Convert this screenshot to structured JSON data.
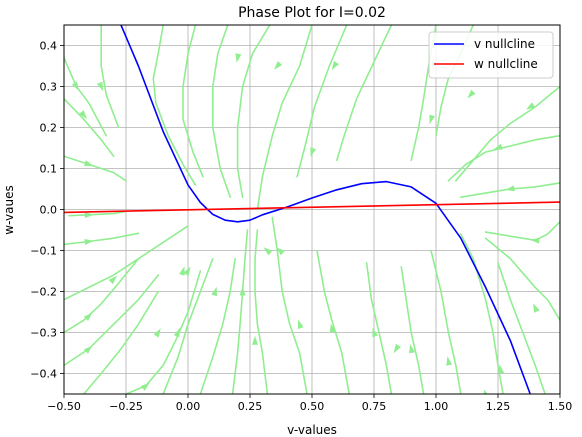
{
  "chart_data": {
    "type": "line",
    "title": "Phase Plot for I=0.02",
    "xlabel": "v-values",
    "ylabel": "w-vaues",
    "xlim": [
      -0.5,
      1.5
    ],
    "ylim": [
      -0.45,
      0.45
    ],
    "xticks": [
      -0.5,
      -0.25,
      0.0,
      0.25,
      0.5,
      0.75,
      1.0,
      1.25,
      1.5
    ],
    "xtick_labels": [
      "−0.50",
      "−0.25",
      "0.00",
      "0.25",
      "0.50",
      "0.75",
      "1.00",
      "1.25",
      "1.50"
    ],
    "yticks": [
      -0.4,
      -0.3,
      -0.2,
      -0.1,
      0.0,
      0.1,
      0.2,
      0.3,
      0.4
    ],
    "ytick_labels": [
      "−0.4",
      "−0.3",
      "−0.2",
      "−0.1",
      "0.0",
      "0.1",
      "0.2",
      "0.3",
      "0.4"
    ],
    "grid": true,
    "legend_position": "top-right",
    "series": [
      {
        "name": "v nullcline",
        "color": "#0000ff",
        "x": [
          -0.27,
          -0.2,
          -0.1,
          0.0,
          0.05,
          0.1,
          0.15,
          0.2,
          0.25,
          0.3,
          0.4,
          0.5,
          0.6,
          0.7,
          0.8,
          0.9,
          1.0,
          1.1,
          1.2,
          1.3,
          1.38
        ],
        "y": [
          0.45,
          0.35,
          0.19,
          0.06,
          0.017,
          -0.012,
          -0.026,
          -0.03,
          -0.026,
          -0.013,
          0.006,
          0.028,
          0.048,
          0.063,
          0.068,
          0.055,
          0.015,
          -0.07,
          -0.19,
          -0.32,
          -0.45
        ]
      },
      {
        "name": "w nullcline",
        "color": "#ff0000",
        "x": [
          -0.5,
          1.5
        ],
        "y": [
          -0.007,
          0.018
        ]
      }
    ],
    "streamlines": {
      "color": "#90ee90",
      "lines": [
        [
          [
            -0.5,
            0.27
          ],
          [
            -0.42,
            0.22
          ],
          [
            -0.35,
            0.17
          ],
          [
            -0.3,
            0.13
          ]
        ],
        [
          [
            -0.5,
            0.13
          ],
          [
            -0.4,
            0.11
          ],
          [
            -0.3,
            0.09
          ],
          [
            -0.25,
            0.07
          ]
        ],
        [
          [
            -0.48,
            -0.015
          ],
          [
            -0.4,
            -0.013
          ],
          [
            -0.3,
            -0.01
          ],
          [
            -0.25,
            -0.005
          ]
        ],
        [
          [
            -0.5,
            -0.085
          ],
          [
            -0.4,
            -0.078
          ],
          [
            -0.3,
            -0.07
          ],
          [
            -0.2,
            -0.058
          ]
        ],
        [
          [
            -0.5,
            -0.22
          ],
          [
            -0.4,
            -0.19
          ],
          [
            -0.3,
            -0.16
          ],
          [
            -0.2,
            -0.12
          ],
          [
            -0.1,
            -0.08
          ],
          [
            0.0,
            -0.04
          ]
        ],
        [
          [
            -0.5,
            -0.3
          ],
          [
            -0.42,
            -0.27
          ],
          [
            -0.35,
            -0.23
          ],
          [
            -0.28,
            -0.18
          ],
          [
            -0.2,
            -0.12
          ]
        ],
        [
          [
            -0.5,
            -0.38
          ],
          [
            -0.4,
            -0.34
          ],
          [
            -0.3,
            -0.28
          ],
          [
            -0.2,
            -0.22
          ],
          [
            -0.12,
            -0.16
          ]
        ],
        [
          [
            -0.42,
            -0.45
          ],
          [
            -0.35,
            -0.4
          ],
          [
            -0.27,
            -0.34
          ],
          [
            -0.2,
            -0.28
          ],
          [
            -0.12,
            -0.2
          ]
        ],
        [
          [
            -0.25,
            -0.45
          ],
          [
            -0.17,
            -0.43
          ],
          [
            -0.1,
            -0.38
          ],
          [
            -0.05,
            -0.32
          ],
          [
            0.0,
            -0.25
          ],
          [
            0.05,
            -0.15
          ]
        ],
        [
          [
            -0.1,
            -0.45
          ],
          [
            -0.04,
            -0.36
          ],
          [
            0.0,
            -0.28
          ],
          [
            0.05,
            -0.2
          ],
          [
            0.1,
            -0.12
          ]
        ],
        [
          [
            -0.5,
            0.37
          ],
          [
            -0.45,
            0.3
          ],
          [
            -0.4,
            0.26
          ],
          [
            -0.33,
            0.18
          ]
        ],
        [
          [
            -0.35,
            0.45
          ],
          [
            -0.35,
            0.35
          ],
          [
            -0.33,
            0.28
          ],
          [
            -0.28,
            0.2
          ]
        ],
        [
          [
            -0.1,
            0.45
          ],
          [
            -0.12,
            0.38
          ],
          [
            -0.14,
            0.32
          ],
          [
            -0.13,
            0.26
          ],
          [
            -0.08,
            0.18
          ],
          [
            -0.02,
            0.11
          ],
          [
            0.03,
            0.06
          ]
        ],
        [
          [
            0.03,
            0.45
          ],
          [
            0.0,
            0.38
          ],
          [
            -0.02,
            0.3
          ],
          [
            -0.02,
            0.22
          ],
          [
            0.02,
            0.14
          ],
          [
            0.06,
            0.08
          ]
        ],
        [
          [
            0.16,
            0.45
          ],
          [
            0.12,
            0.38
          ],
          [
            0.1,
            0.3
          ],
          [
            0.1,
            0.2
          ],
          [
            0.13,
            0.1
          ],
          [
            0.17,
            0.03
          ]
        ],
        [
          [
            0.33,
            0.45
          ],
          [
            0.26,
            0.38
          ],
          [
            0.22,
            0.3
          ],
          [
            0.2,
            0.2
          ],
          [
            0.2,
            0.1
          ],
          [
            0.22,
            0.03
          ]
        ],
        [
          [
            0.5,
            0.45
          ],
          [
            0.45,
            0.35
          ],
          [
            0.38,
            0.26
          ],
          [
            0.34,
            0.18
          ],
          [
            0.3,
            0.08
          ],
          [
            0.28,
            0.0
          ]
        ],
        [
          [
            0.64,
            0.45
          ],
          [
            0.57,
            0.35
          ],
          [
            0.51,
            0.25
          ],
          [
            0.47,
            0.15
          ],
          [
            0.44,
            0.08
          ]
        ],
        [
          [
            0.82,
            0.45
          ],
          [
            0.75,
            0.36
          ],
          [
            0.68,
            0.27
          ],
          [
            0.63,
            0.18
          ],
          [
            0.6,
            0.12
          ]
        ],
        [
          [
            1.0,
            0.45
          ],
          [
            0.97,
            0.35
          ],
          [
            0.95,
            0.27
          ],
          [
            0.93,
            0.2
          ],
          [
            0.9,
            0.12
          ]
        ],
        [
          [
            1.15,
            0.45
          ],
          [
            1.1,
            0.38
          ],
          [
            1.05,
            0.32
          ],
          [
            1.02,
            0.25
          ],
          [
            1.0,
            0.18
          ]
        ],
        [
          [
            1.5,
            0.3
          ],
          [
            1.4,
            0.25
          ],
          [
            1.3,
            0.21
          ],
          [
            1.22,
            0.17
          ],
          [
            1.15,
            0.12
          ],
          [
            1.08,
            0.07
          ]
        ],
        [
          [
            1.5,
            0.18
          ],
          [
            1.4,
            0.17
          ],
          [
            1.3,
            0.155
          ],
          [
            1.2,
            0.14
          ],
          [
            1.12,
            0.11
          ],
          [
            1.05,
            0.07
          ]
        ],
        [
          [
            1.5,
            0.065
          ],
          [
            1.4,
            0.055
          ],
          [
            1.3,
            0.05
          ],
          [
            1.2,
            0.04
          ],
          [
            1.1,
            0.03
          ]
        ],
        [
          [
            1.5,
            -0.03
          ],
          [
            1.45,
            -0.06
          ],
          [
            1.4,
            -0.075
          ],
          [
            1.3,
            -0.065
          ],
          [
            1.2,
            -0.055
          ]
        ],
        [
          [
            1.5,
            -0.27
          ],
          [
            1.45,
            -0.22
          ],
          [
            1.4,
            -0.19
          ],
          [
            1.3,
            -0.12
          ],
          [
            1.2,
            -0.07
          ]
        ],
        [
          [
            1.44,
            -0.45
          ],
          [
            1.4,
            -0.38
          ],
          [
            1.35,
            -0.3
          ],
          [
            1.3,
            -0.22
          ],
          [
            1.25,
            -0.13
          ]
        ],
        [
          [
            1.27,
            -0.45
          ],
          [
            1.25,
            -0.38
          ],
          [
            1.23,
            -0.3
          ],
          [
            1.2,
            -0.22
          ],
          [
            1.15,
            -0.12
          ],
          [
            1.1,
            -0.06
          ]
        ],
        [
          [
            1.1,
            -0.45
          ],
          [
            1.08,
            -0.38
          ],
          [
            1.05,
            -0.3
          ],
          [
            1.02,
            -0.2
          ],
          [
            0.98,
            -0.1
          ]
        ],
        [
          [
            0.95,
            -0.45
          ],
          [
            0.93,
            -0.38
          ],
          [
            0.9,
            -0.3
          ],
          [
            0.88,
            -0.22
          ],
          [
            0.86,
            -0.14
          ]
        ],
        [
          [
            0.82,
            -0.45
          ],
          [
            0.8,
            -0.38
          ],
          [
            0.77,
            -0.3
          ],
          [
            0.74,
            -0.22
          ],
          [
            0.72,
            -0.13
          ]
        ],
        [
          [
            0.65,
            -0.45
          ],
          [
            0.62,
            -0.35
          ],
          [
            0.58,
            -0.27
          ],
          [
            0.55,
            -0.2
          ],
          [
            0.52,
            -0.1
          ]
        ],
        [
          [
            0.48,
            -0.45
          ],
          [
            0.45,
            -0.35
          ],
          [
            0.41,
            -0.28
          ],
          [
            0.38,
            -0.2
          ],
          [
            0.36,
            -0.1
          ],
          [
            0.34,
            -0.02
          ]
        ],
        [
          [
            0.32,
            -0.45
          ],
          [
            0.3,
            -0.35
          ],
          [
            0.28,
            -0.28
          ],
          [
            0.27,
            -0.2
          ],
          [
            0.27,
            -0.12
          ],
          [
            0.28,
            -0.05
          ]
        ],
        [
          [
            0.18,
            -0.45
          ],
          [
            0.2,
            -0.35
          ],
          [
            0.21,
            -0.28
          ],
          [
            0.22,
            -0.2
          ],
          [
            0.23,
            -0.12
          ],
          [
            0.24,
            -0.05
          ]
        ],
        [
          [
            0.05,
            -0.45
          ],
          [
            0.1,
            -0.36
          ],
          [
            0.14,
            -0.28
          ],
          [
            0.17,
            -0.2
          ],
          [
            0.19,
            -0.12
          ]
        ]
      ],
      "arrows": [
        [
          [
            -0.42,
            0.23
          ],
          [
            -0.38,
            0.2
          ]
        ],
        [
          [
            -0.4,
            0.11
          ],
          [
            -0.35,
            0.1
          ]
        ],
        [
          [
            -0.4,
            -0.013
          ],
          [
            -0.35,
            -0.012
          ]
        ],
        [
          [
            -0.4,
            -0.078
          ],
          [
            -0.35,
            -0.074
          ]
        ],
        [
          [
            -0.3,
            -0.17
          ],
          [
            -0.25,
            -0.14
          ]
        ],
        [
          [
            -0.4,
            -0.26
          ],
          [
            -0.35,
            -0.23
          ]
        ],
        [
          [
            -0.4,
            -0.34
          ],
          [
            -0.35,
            -0.31
          ]
        ],
        [
          [
            -0.17,
            -0.43
          ],
          [
            -0.13,
            -0.41
          ]
        ],
        [
          [
            -0.04,
            -0.3
          ],
          [
            -0.02,
            -0.27
          ]
        ],
        [
          [
            0.0,
            -0.15
          ],
          [
            0.02,
            -0.13
          ]
        ],
        [
          [
            -0.35,
            0.3
          ],
          [
            -0.33,
            0.27
          ]
        ],
        [
          [
            -0.45,
            0.3
          ],
          [
            -0.42,
            0.27
          ]
        ],
        [
          [
            0.2,
            0.37
          ],
          [
            0.19,
            0.34
          ]
        ],
        [
          [
            0.59,
            0.35
          ],
          [
            0.56,
            0.32
          ]
        ],
        [
          [
            0.98,
            0.22
          ],
          [
            0.97,
            0.2
          ]
        ],
        [
          [
            1.14,
            0.28
          ],
          [
            1.11,
            0.26
          ]
        ],
        [
          [
            1.25,
            0.15
          ],
          [
            1.2,
            0.14
          ]
        ],
        [
          [
            1.3,
            0.05
          ],
          [
            1.25,
            0.045
          ]
        ],
        [
          [
            1.38,
            0.25
          ],
          [
            1.33,
            0.23
          ]
        ],
        [
          [
            1.4,
            -0.075
          ],
          [
            1.35,
            -0.072
          ]
        ],
        [
          [
            1.4,
            -0.24
          ],
          [
            1.37,
            -0.2
          ]
        ],
        [
          [
            1.2,
            -0.45
          ],
          [
            1.18,
            -0.42
          ]
        ],
        [
          [
            1.26,
            -0.39
          ],
          [
            1.25,
            -0.36
          ]
        ],
        [
          [
            1.05,
            -0.37
          ],
          [
            1.04,
            -0.34
          ]
        ],
        [
          [
            0.9,
            -0.34
          ],
          [
            0.89,
            -0.31
          ]
        ],
        [
          [
            0.84,
            -0.34
          ],
          [
            0.82,
            -0.36
          ]
        ],
        [
          [
            0.75,
            -0.3
          ],
          [
            0.74,
            -0.28
          ]
        ],
        [
          [
            0.58,
            -0.29
          ],
          [
            0.57,
            -0.26
          ]
        ],
        [
          [
            0.45,
            -0.28
          ],
          [
            0.44,
            -0.26
          ]
        ],
        [
          [
            0.27,
            -0.32
          ],
          [
            0.27,
            -0.3
          ]
        ],
        [
          [
            0.37,
            -0.1
          ],
          [
            0.35,
            -0.09
          ]
        ],
        [
          [
            0.32,
            -0.1
          ],
          [
            0.3,
            -0.09
          ]
        ],
        [
          [
            0.11,
            -0.2
          ],
          [
            0.12,
            -0.18
          ]
        ],
        [
          [
            -0.02,
            -0.15
          ],
          [
            -0.01,
            -0.13
          ]
        ],
        [
          [
            -0.12,
            -0.3
          ],
          [
            -0.1,
            -0.28
          ]
        ],
        [
          [
            0.22,
            -0.2
          ],
          [
            0.22,
            -0.18
          ]
        ],
        [
          [
            0.5,
            0.14
          ],
          [
            0.49,
            0.12
          ]
        ],
        [
          [
            0.36,
            0.35
          ],
          [
            0.33,
            0.33
          ]
        ]
      ]
    }
  }
}
